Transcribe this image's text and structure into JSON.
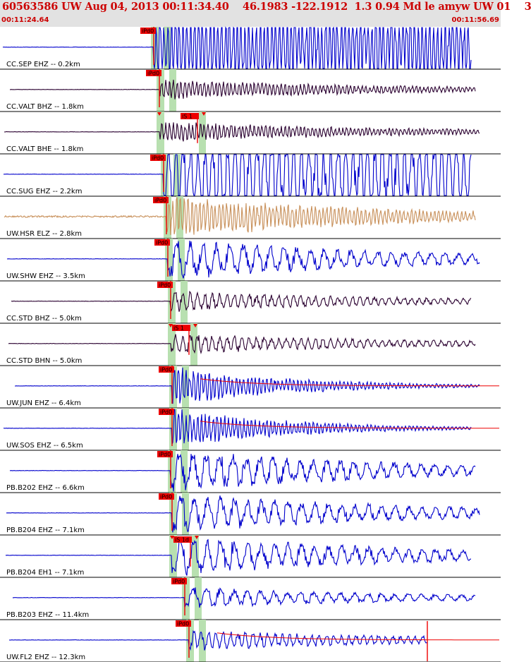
{
  "header": {
    "title": "60563586 UW Aug 04, 2013 00:11:34.40    46.1983 -122.1912  1.3 0.94 Md le amyw UW 01    3",
    "time_start": "00:11:24.64",
    "time_end": "00:11:56.69"
  },
  "colors": {
    "blue": "#0000cc",
    "dark": "#2a0030",
    "tan": "#c8905a",
    "pick": "#ee0000",
    "window": "#b8e0b0",
    "header_bg": "#e2e2e2",
    "title": "#cc0000"
  },
  "chart_data": {
    "type": "line",
    "time_range": [
      "00:11:24.64",
      "00:11:56.69"
    ],
    "traces": [
      {
        "label": "CC.SEP EHZ -- 0.2km",
        "color": "blue",
        "p_label": "iPd0",
        "p_sec": 8.6,
        "amp": "clipped",
        "style": "high"
      },
      {
        "label": "CC.VALT BHZ -- 1.8km",
        "color": "dark",
        "p_label": "iPd0",
        "p_sec": 9.0,
        "amp": "medium",
        "style": "high"
      },
      {
        "label": "CC.VALT BHE -- 1.8km",
        "color": "dark",
        "p_label": null,
        "p_sec": 9.0,
        "s_label": "iS 1",
        "s_sec": 11.7,
        "amp": "medium",
        "style": "high"
      },
      {
        "label": "CC.SUG EHZ -- 2.2km",
        "color": "blue",
        "p_label": "iPd0",
        "p_sec": 9.3,
        "amp": "clipped",
        "style": "mid"
      },
      {
        "label": "UW.HSR ELZ -- 2.8km",
        "color": "tan",
        "p_label": "iPd0",
        "p_sec": 9.5,
        "amp": "large",
        "style": "high"
      },
      {
        "label": "UW.SHW EHZ -- 3.5km",
        "color": "blue",
        "p_label": "iPd0",
        "p_sec": 9.6,
        "amp": "large",
        "style": "low"
      },
      {
        "label": "CC.STD BHZ -- 5.0km",
        "color": "dark",
        "p_label": "iPd0",
        "p_sec": 9.8,
        "amp": "medium",
        "style": "mid"
      },
      {
        "label": "CC.STD BHN -- 5.0km",
        "color": "dark",
        "p_label": null,
        "p_sec": 9.8,
        "s_label": "iS 1",
        "s_sec": 11.1,
        "amp": "medium",
        "style": "mid"
      },
      {
        "label": "UW.JUN EHZ -- 6.4km",
        "color": "blue",
        "p_label": "iPd0",
        "p_sec": 9.9,
        "amp": "decay",
        "style": "high",
        "coda": true
      },
      {
        "label": "UW.SOS EHZ -- 6.5km",
        "color": "blue",
        "p_label": "iPd0",
        "p_sec": 9.9,
        "amp": "decay",
        "style": "high",
        "coda": true
      },
      {
        "label": "PB.B202 EHZ -- 6.6km",
        "color": "blue",
        "p_label": "iPd0",
        "p_sec": 9.8,
        "amp": "large",
        "style": "low"
      },
      {
        "label": "PB.B204 EHZ -- 7.1km",
        "color": "blue",
        "p_label": "iPd0",
        "p_sec": 9.9,
        "amp": "large",
        "style": "low"
      },
      {
        "label": "PB.B204 EH1 -- 7.1km",
        "color": "blue",
        "p_label": null,
        "p_sec": 9.9,
        "s_label": "iS 1d",
        "s_sec": 11.2,
        "amp": "large",
        "style": "low"
      },
      {
        "label": "PB.B203 EHZ -- 11.4km",
        "color": "blue",
        "p_label": "iPd0",
        "p_sec": 10.8,
        "amp": "medium",
        "style": "low"
      },
      {
        "label": "UW.FL2 EHZ -- 12.3km",
        "color": "blue",
        "p_label": "iPd0",
        "p_sec": 11.1,
        "amp": "medium",
        "style": "mid",
        "coda": true,
        "end_sec": 28.0
      }
    ]
  }
}
